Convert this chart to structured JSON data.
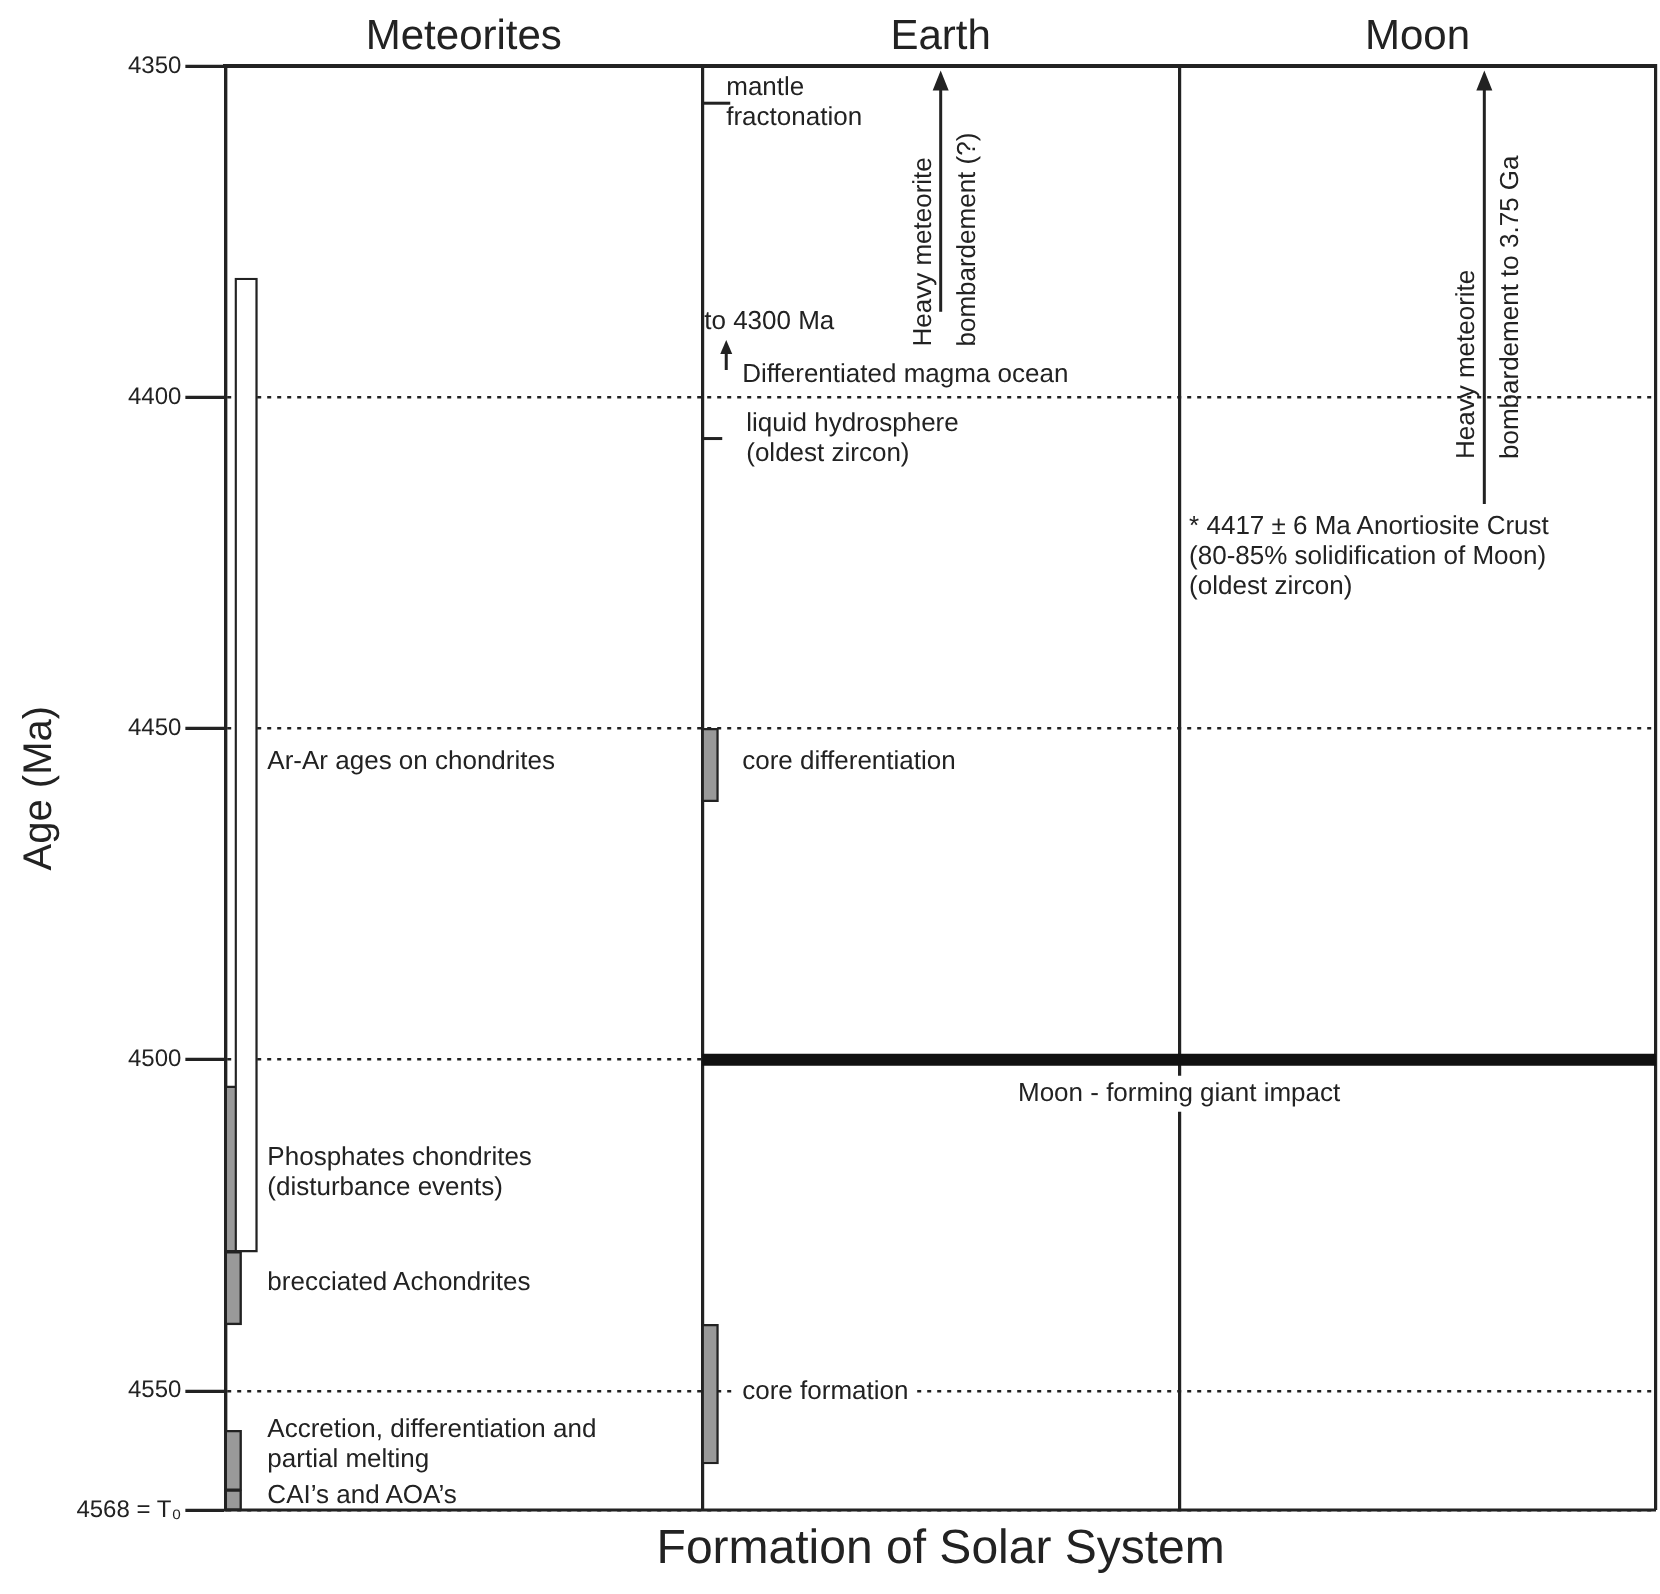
{
  "chart_data": {
    "type": "bar",
    "xlabel": "Formation of Solar System",
    "ylabel": "Age (Ma)",
    "categories": [
      "Meteorites",
      "Earth",
      "Moon"
    ],
    "series": [
      {
        "color": "#999999",
        "base": [
          4504,
          4450,
          null
        ],
        "values": [
          25,
          11,
          null
        ]
      },
      {
        "color": "#999999",
        "base": [
          4529,
          4540,
          null
        ],
        "values": [
          11,
          21,
          null
        ]
      },
      {
        "color": "#999999",
        "base": [
          4556,
          null,
          null
        ],
        "values": [
          9,
          null,
          null
        ]
      },
      {
        "color": "#999999",
        "base": [
          4565,
          null,
          null
        ],
        "values": [
          3,
          null,
          null
        ]
      },
      {
        "color": "#ffffff",
        "base": [
          4382,
          null,
          null
        ],
        "values": [
          147,
          null,
          null
        ]
      }
    ],
    "ylim": [
      4568,
      4350
    ],
    "yticks": [
      4350,
      4400,
      4450,
      4500,
      4550,
      {
        "value": 4568,
        "label": "4568 = T₀"
      }
    ],
    "grid": true,
    "ref_lines": [
      {
        "axis": "y",
        "value": 4500,
        "label": "Moon - forming giant impact",
        "color": "#111111"
      }
    ],
    "annotations": [
      "Ar-Ar ages on chondrites",
      "Phosphates chondrites\n(disturbance events)",
      "brecciated Achondrites",
      "Accretion, differentiation and\npartial melting",
      "CAI’s and AOA’s",
      "mantle\nfractonation",
      "to 4300 Ma",
      "Differentiated magma ocean",
      "liquid hydrosphere\n(oldest zircon)",
      "core differentiation",
      "core formation",
      "Heavy meteorite\nbombardement (?)",
      "Heavy meteorite\nbombardement to 3.75 Ga",
      "* 4417 ± 6 Ma Anortiosite Crust\n(80-85% solidification of Moon)\n(oldest zircon)"
    ]
  }
}
